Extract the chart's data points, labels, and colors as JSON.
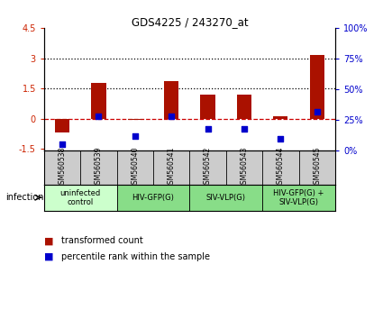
{
  "title": "GDS4225 / 243270_at",
  "samples": [
    "GSM560538",
    "GSM560539",
    "GSM560540",
    "GSM560541",
    "GSM560542",
    "GSM560543",
    "GSM560544",
    "GSM560545"
  ],
  "transformed_counts": [
    -0.7,
    1.75,
    -0.05,
    1.85,
    1.2,
    1.2,
    0.1,
    3.15
  ],
  "percentile_ranks": [
    5,
    28,
    12,
    28,
    18,
    18,
    10,
    32
  ],
  "ylim_left": [
    -1.6,
    4.5
  ],
  "ylim_right": [
    0,
    100
  ],
  "yticks_left": [
    -1.5,
    0,
    1.5,
    3,
    4.5
  ],
  "yticks_right": [
    0,
    25,
    50,
    75,
    100
  ],
  "ytick_labels_left": [
    "-1.5",
    "0",
    "1.5",
    "3",
    "4.5"
  ],
  "ytick_labels_right": [
    "0%",
    "25%",
    "50%",
    "75%",
    "100%"
  ],
  "hlines": [
    0,
    1.5,
    3.0
  ],
  "hline_styles": [
    "dashed",
    "dotted",
    "dotted"
  ],
  "hline_colors": [
    "#cc0000",
    "#000000",
    "#000000"
  ],
  "bar_color": "#aa1100",
  "dot_color": "#0000cc",
  "groups": [
    {
      "label": "uninfected\ncontrol",
      "start": 0,
      "end": 2,
      "color": "#ccffcc"
    },
    {
      "label": "HIV-GFP(G)",
      "start": 2,
      "end": 4,
      "color": "#88dd88"
    },
    {
      "label": "SIV-VLP(G)",
      "start": 4,
      "end": 6,
      "color": "#88dd88"
    },
    {
      "label": "HIV-GFP(G) +\nSIV-VLP(G)",
      "start": 6,
      "end": 8,
      "color": "#88dd88"
    }
  ],
  "xlabel_infection": "infection",
  "legend_bar_label": "transformed count",
  "legend_dot_label": "percentile rank within the sample",
  "bar_width": 0.4,
  "dot_size": 25,
  "sample_bg_color": "#cccccc"
}
